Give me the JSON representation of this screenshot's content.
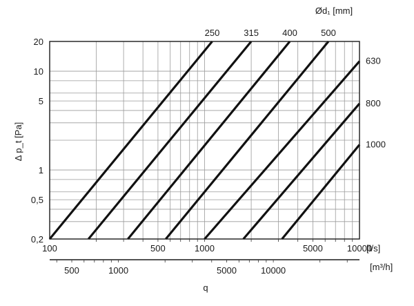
{
  "chart_data": {
    "type": "line",
    "title": "",
    "xlabel": "q",
    "ylabel": "Δ p_t [Pa]",
    "x_scale": "log",
    "y_scale": "log",
    "xlim": [
      100,
      10000
    ],
    "ylim": [
      0.2,
      20
    ],
    "grid": true,
    "x_unit": "[l/s]",
    "x2_unit": "[m³/h]",
    "series_group_label": "Ød₁ [mm]",
    "y_ticks": [
      {
        "value": 0.2,
        "label": "0,2"
      },
      {
        "value": 0.5,
        "label": "0,5"
      },
      {
        "value": 1,
        "label": "1"
      },
      {
        "value": 5,
        "label": "5"
      },
      {
        "value": 10,
        "label": "10"
      },
      {
        "value": 20,
        "label": "20"
      }
    ],
    "x_ticks": [
      {
        "value": 100,
        "label": "100"
      },
      {
        "value": 500,
        "label": "500"
      },
      {
        "value": 1000,
        "label": "1000"
      },
      {
        "value": 5000,
        "label": "5000"
      },
      {
        "value": 10000,
        "label": "10000"
      }
    ],
    "x2_ticks": [
      {
        "value": 500,
        "label": "500"
      },
      {
        "value": 1000,
        "label": "1000"
      },
      {
        "value": 5000,
        "label": "5000"
      },
      {
        "value": 10000,
        "label": "10000"
      }
    ],
    "series": [
      {
        "name": "250",
        "points": [
          [
            100,
            0.2
          ],
          [
            1120,
            20
          ]
        ]
      },
      {
        "name": "315",
        "points": [
          [
            178,
            0.2
          ],
          [
            2000,
            20
          ]
        ]
      },
      {
        "name": "400",
        "points": [
          [
            320,
            0.2
          ],
          [
            3550,
            20
          ]
        ]
      },
      {
        "name": "500",
        "points": [
          [
            562,
            0.2
          ],
          [
            6300,
            20
          ]
        ]
      },
      {
        "name": "630",
        "points": [
          [
            1000,
            0.2
          ],
          [
            10000,
            12.6
          ]
        ]
      },
      {
        "name": "800",
        "points": [
          [
            1780,
            0.2
          ],
          [
            10000,
            4.7
          ]
        ]
      },
      {
        "name": "1000",
        "points": [
          [
            3160,
            0.2
          ],
          [
            10000,
            1.8
          ]
        ]
      }
    ]
  }
}
